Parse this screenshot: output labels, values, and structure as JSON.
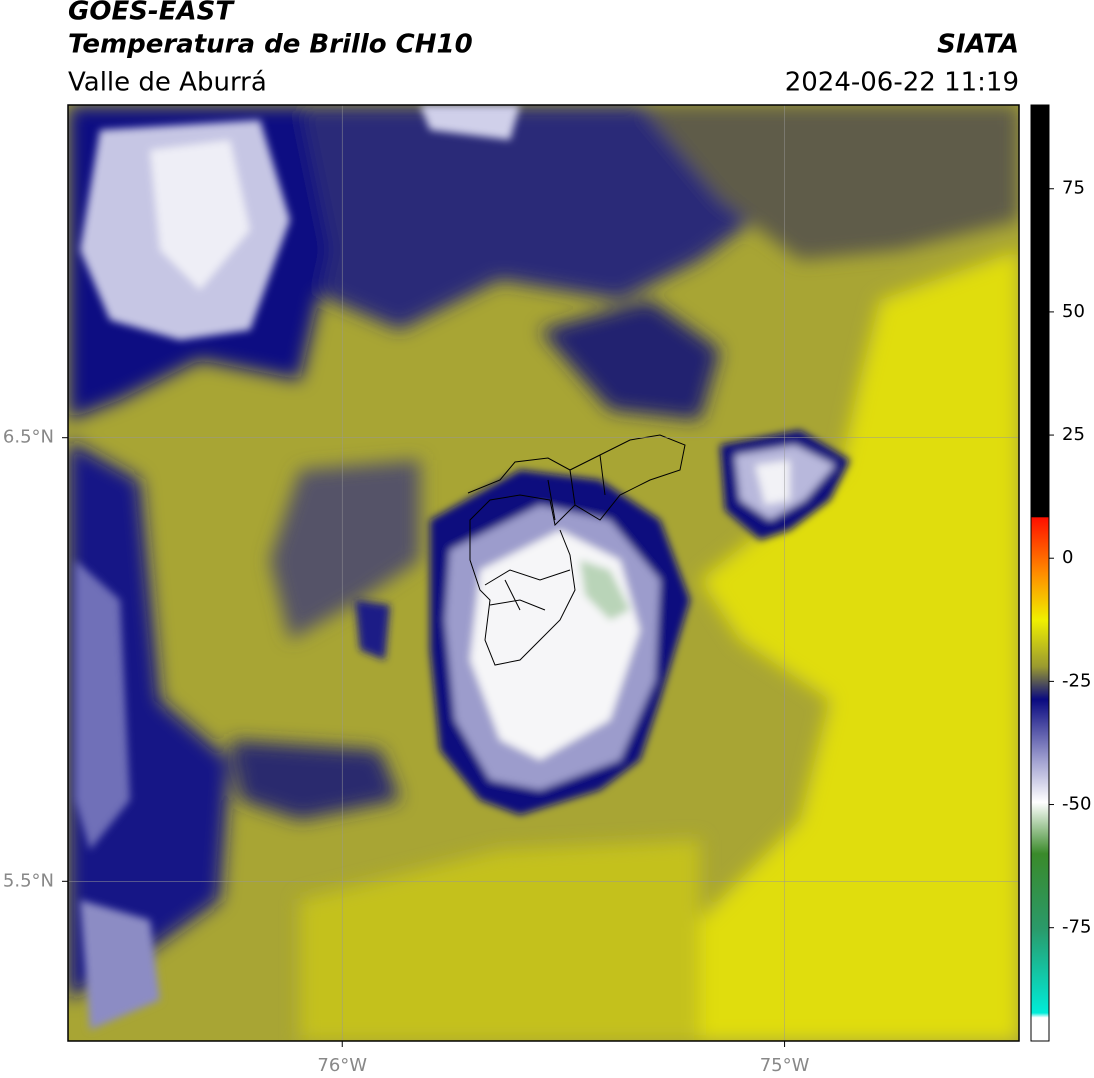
{
  "header": {
    "line1": "GOES-EAST",
    "line2": "Temperatura de Brillo CH10",
    "line3": "Valle de Aburrá",
    "source": "SIATA",
    "datetime": "2024-06-22 11:19"
  },
  "map": {
    "lon_range": [
      -76.62,
      -74.47
    ],
    "lat_range": [
      5.14,
      7.25
    ],
    "lon_ticks": [
      {
        "value": -76,
        "label": "76°W"
      },
      {
        "value": -75,
        "label": "75°W"
      }
    ],
    "lat_ticks": [
      {
        "value": 6.5,
        "label": "6.5°N"
      },
      {
        "value": 5.5,
        "label": "5.5°N"
      }
    ]
  },
  "colorbar": {
    "range": [
      -98,
      92
    ],
    "ticks": [
      75,
      50,
      25,
      0,
      -25,
      -50,
      -75
    ]
  }
}
